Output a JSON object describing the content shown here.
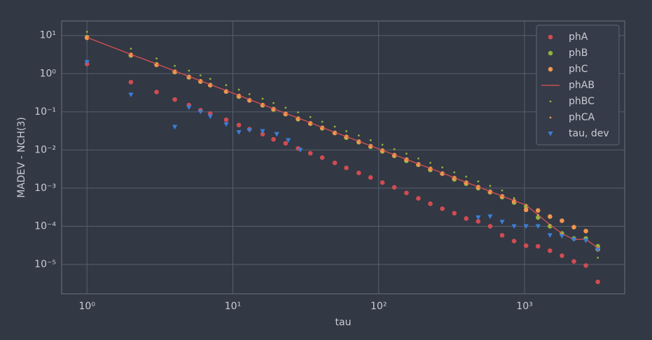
{
  "chart_data": {
    "type": "scatter",
    "xlabel": "tau",
    "ylabel": "MADEV - NCH(3)",
    "xscale": "log",
    "yscale": "log",
    "grid": true,
    "legend": "upper right",
    "xlim": [
      0.67,
      4860
    ],
    "ylim": [
      1.7e-06,
      24
    ],
    "xticks": [
      {
        "value": 1,
        "label": "10⁰"
      },
      {
        "value": 10,
        "label": "10¹"
      },
      {
        "value": 100,
        "label": "10²"
      },
      {
        "value": 1000,
        "label": "10³"
      }
    ],
    "yticks": [
      {
        "value": 1e-05,
        "label": "10⁻⁵"
      },
      {
        "value": 0.0001,
        "label": "10⁻⁴"
      },
      {
        "value": 0.001,
        "label": "10⁻³"
      },
      {
        "value": 0.01,
        "label": "10⁻²"
      },
      {
        "value": 0.1,
        "label": "10⁻¹"
      },
      {
        "value": 1,
        "label": "10⁰"
      },
      {
        "value": 10,
        "label": "10¹"
      }
    ],
    "x": [
      1,
      2,
      3,
      4,
      5,
      6,
      7,
      9,
      11,
      13,
      16,
      19,
      23,
      28,
      34,
      41,
      50,
      60,
      73,
      88,
      106,
      128,
      155,
      187,
      226,
      273,
      330,
      398,
      481,
      581,
      702,
      848,
      1024,
      1237,
      1494,
      1805,
      2180,
      2633,
      3180
    ],
    "series": [
      {
        "name": "phA",
        "color": "#d04c52",
        "marker": "circle",
        "values": [
          1.8,
          0.6,
          0.33,
          0.21,
          0.15,
          0.11,
          0.09,
          0.062,
          0.045,
          0.035,
          0.026,
          0.019,
          0.015,
          0.011,
          0.0082,
          0.0063,
          0.0046,
          0.0034,
          0.0025,
          0.0019,
          0.0014,
          0.00105,
          0.00075,
          0.00054,
          0.00039,
          0.00029,
          0.00022,
          0.00016,
          0.000135,
          0.0001,
          5.8e-05,
          4.1e-05,
          3.1e-05,
          3e-05,
          2.3e-05,
          1.7e-05,
          1.2e-05,
          9.4e-06,
          3.5e-06
        ]
      },
      {
        "name": "phB",
        "color": "#8cb33e",
        "marker": "circle",
        "values": [
          9.0,
          3.0,
          1.75,
          1.1,
          0.8,
          0.62,
          0.5,
          0.34,
          0.25,
          0.2,
          0.148,
          0.115,
          0.087,
          0.064,
          0.049,
          0.037,
          0.028,
          0.021,
          0.016,
          0.0122,
          0.0092,
          0.007,
          0.0052,
          0.0041,
          0.003,
          0.0024,
          0.0017,
          0.0013,
          0.001,
          0.00078,
          0.00058,
          0.00042,
          0.00033,
          0.00017,
          0.0001,
          6.5e-05,
          4.8e-05,
          4.8e-05,
          3e-05
        ]
      },
      {
        "name": "phC",
        "color": "#f0964f",
        "marker": "circle",
        "values": [
          8.7,
          3.1,
          1.7,
          1.12,
          0.82,
          0.63,
          0.5,
          0.34,
          0.26,
          0.2,
          0.15,
          0.118,
          0.088,
          0.066,
          0.05,
          0.038,
          0.028,
          0.022,
          0.0165,
          0.0126,
          0.0096,
          0.0073,
          0.0056,
          0.0042,
          0.0032,
          0.0024,
          0.00183,
          0.00139,
          0.00106,
          0.0008,
          0.00061,
          0.00045,
          0.00027,
          0.00026,
          0.00018,
          0.00014,
          9.5e-05,
          7.5e-05,
          2.5e-05
        ]
      },
      {
        "name": "phAB",
        "color": "#c44e52",
        "marker": "line",
        "values": [
          8.9,
          3.2,
          1.8,
          1.17,
          0.85,
          0.65,
          0.52,
          0.36,
          0.27,
          0.21,
          0.155,
          0.121,
          0.091,
          0.069,
          0.052,
          0.039,
          0.029,
          0.0225,
          0.0169,
          0.0129,
          0.0098,
          0.0075,
          0.0057,
          0.0043,
          0.0033,
          0.0025,
          0.00187,
          0.00142,
          0.00108,
          0.00082,
          0.00062,
          0.00047,
          0.00036,
          0.0002,
          0.00011,
          6.5e-05,
          4.5e-05,
          4.6e-05,
          2.7e-05
        ]
      },
      {
        "name": "phBC",
        "color": "#8cb33e",
        "marker": "point",
        "values": [
          12.5,
          4.5,
          2.5,
          1.6,
          1.2,
          0.9,
          0.73,
          0.5,
          0.38,
          0.29,
          0.22,
          0.17,
          0.128,
          0.097,
          0.073,
          0.055,
          0.041,
          0.031,
          0.024,
          0.018,
          0.0137,
          0.0105,
          0.008,
          0.006,
          0.0046,
          0.0035,
          0.0026,
          0.002,
          0.0015,
          0.00115,
          0.00087,
          0.00055,
          0.00037,
          0.00019,
          0.00011,
          7e-05,
          5e-05,
          5e-05,
          1.5e-05
        ]
      },
      {
        "name": "phCA",
        "color": "#f0964f",
        "marker": "point",
        "values": [
          8.8,
          3.15,
          1.78,
          1.15,
          0.84,
          0.64,
          0.51,
          0.355,
          0.265,
          0.205,
          0.152,
          0.119,
          0.09,
          0.068,
          0.051,
          0.0385,
          0.0285,
          0.0222,
          0.0167,
          0.0127,
          0.0097,
          0.0074,
          0.0056,
          0.0042,
          0.0032,
          0.0025,
          0.00185,
          0.0014,
          0.00107,
          0.00081,
          0.00061,
          0.00046,
          0.00035,
          0.0002,
          0.000105,
          6.3e-05,
          4.4e-05,
          4.5e-05,
          2.6e-05
        ]
      },
      {
        "name": "tau, dev",
        "color": "#3b7fd6",
        "marker": "triangle",
        "x": [
          1,
          2,
          4,
          5,
          6,
          7,
          9,
          11,
          13,
          16,
          20,
          24,
          29,
          481,
          581,
          702,
          848,
          1024,
          1237,
          1494,
          1805,
          2180,
          2633,
          3180
        ],
        "values": [
          2.0,
          0.28,
          0.04,
          0.13,
          0.1,
          0.075,
          0.047,
          0.029,
          0.033,
          0.031,
          0.026,
          0.018,
          0.01,
          0.00017,
          0.00018,
          0.00013,
          0.0001,
          0.0001,
          0.0001,
          5.8e-05,
          5.5e-05,
          4.5e-05,
          4.2e-05,
          2.4e-05
        ]
      }
    ]
  }
}
